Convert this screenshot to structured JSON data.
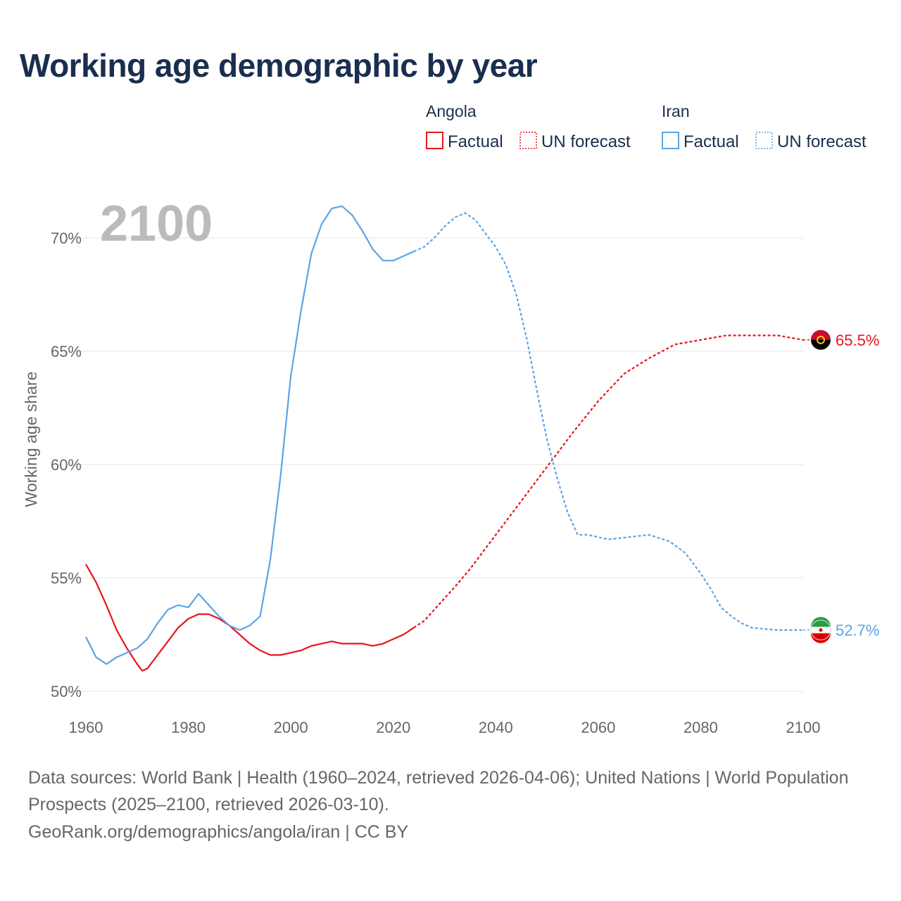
{
  "title": "Working age demographic by year",
  "footer": {
    "sources": "Data sources: World Bank | Health (1960–2024, retrieved 2026-04-06); United Nations | World Population Prospects (2025–2100, retrieved 2026-03-10).",
    "credit": "GeoRank.org/demographics/angola/iran | CC BY"
  },
  "colors": {
    "angola": "#e8141c",
    "iran": "#5ba4e6",
    "title": "#1a2e4f",
    "axis_text": "#666666",
    "grid": "#e6e6e6",
    "year_watermark": "#bbbbbb"
  },
  "chart_data": {
    "type": "line",
    "title": "Working age demographic by year",
    "ylabel": "Working age share",
    "xlabel": "",
    "year_label": "2100",
    "xlim": [
      1960,
      2100
    ],
    "ylim": [
      50,
      72
    ],
    "x_ticks": [
      1960,
      1980,
      2000,
      2020,
      2040,
      2060,
      2080,
      2100
    ],
    "y_ticks": [
      {
        "value": 50,
        "label": "50%"
      },
      {
        "value": 55,
        "label": "55%"
      },
      {
        "value": 60,
        "label": "60%"
      },
      {
        "value": 65,
        "label": "65%"
      },
      {
        "value": 70,
        "label": "70%"
      }
    ],
    "legend": {
      "placement": "top-right",
      "groups": [
        {
          "country": "Angola",
          "factual_label": "Factual",
          "forecast_label": "UN forecast",
          "color_key": "angola"
        },
        {
          "country": "Iran",
          "factual_label": "Factual",
          "forecast_label": "UN forecast",
          "color_key": "iran"
        }
      ]
    },
    "series": [
      {
        "name": "Angola",
        "color_key": "angola",
        "flag_icon": "angola-flag-icon",
        "end_label": "65.5%",
        "factual": {
          "x": [
            1960,
            1962,
            1964,
            1966,
            1968,
            1970,
            1971,
            1972,
            1974,
            1976,
            1978,
            1980,
            1982,
            1984,
            1986,
            1988,
            1990,
            1992,
            1994,
            1996,
            1998,
            2000,
            2002,
            2004,
            2006,
            2008,
            2010,
            2012,
            2014,
            2016,
            2018,
            2020,
            2022,
            2024
          ],
          "y": [
            55.6,
            54.8,
            53.8,
            52.7,
            51.9,
            51.2,
            50.9,
            51.0,
            51.6,
            52.2,
            52.8,
            53.2,
            53.4,
            53.4,
            53.2,
            52.9,
            52.5,
            52.1,
            51.8,
            51.6,
            51.6,
            51.7,
            51.8,
            52.0,
            52.1,
            52.2,
            52.1,
            52.1,
            52.1,
            52.0,
            52.1,
            52.3,
            52.5,
            52.8
          ]
        },
        "forecast": {
          "x": [
            2024,
            2026,
            2028,
            2030,
            2032,
            2035,
            2040,
            2045,
            2050,
            2055,
            2060,
            2065,
            2070,
            2075,
            2080,
            2085,
            2090,
            2095,
            2100
          ],
          "y": [
            52.8,
            53.1,
            53.6,
            54.1,
            54.6,
            55.4,
            56.9,
            58.4,
            59.9,
            61.4,
            62.8,
            64.0,
            64.7,
            65.3,
            65.5,
            65.7,
            65.7,
            65.7,
            65.5
          ]
        }
      },
      {
        "name": "Iran",
        "color_key": "iran",
        "flag_icon": "iran-flag-icon",
        "end_label": "52.7%",
        "factual": {
          "x": [
            1960,
            1962,
            1964,
            1966,
            1968,
            1970,
            1972,
            1974,
            1976,
            1978,
            1980,
            1982,
            1984,
            1986,
            1988,
            1990,
            1992,
            1994,
            1996,
            1998,
            2000,
            2002,
            2004,
            2006,
            2008,
            2010,
            2012,
            2014,
            2016,
            2018,
            2020,
            2022,
            2024
          ],
          "y": [
            52.4,
            51.5,
            51.2,
            51.5,
            51.7,
            51.9,
            52.3,
            53.0,
            53.6,
            53.8,
            53.7,
            54.3,
            53.8,
            53.3,
            52.9,
            52.7,
            52.9,
            53.3,
            55.8,
            59.5,
            63.9,
            66.8,
            69.3,
            70.6,
            71.3,
            71.4,
            71.0,
            70.3,
            69.5,
            69.0,
            69.0,
            69.2,
            69.4
          ]
        },
        "forecast": {
          "x": [
            2024,
            2026,
            2028,
            2030,
            2032,
            2034,
            2036,
            2038,
            2040,
            2042,
            2044,
            2046,
            2048,
            2050,
            2052,
            2054,
            2056,
            2058,
            2060,
            2062,
            2066,
            2070,
            2074,
            2077,
            2080,
            2082,
            2084,
            2086,
            2088,
            2090,
            2095,
            2100
          ],
          "y": [
            69.4,
            69.6,
            70.0,
            70.5,
            70.9,
            71.1,
            70.8,
            70.2,
            69.6,
            68.8,
            67.5,
            65.6,
            63.3,
            61.1,
            59.4,
            57.9,
            56.9,
            56.9,
            56.8,
            56.7,
            56.8,
            56.9,
            56.6,
            56.1,
            55.2,
            54.5,
            53.7,
            53.3,
            53.0,
            52.8,
            52.7,
            52.7
          ]
        }
      }
    ]
  }
}
